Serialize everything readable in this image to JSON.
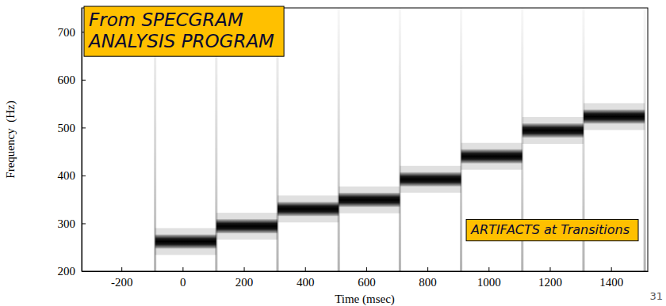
{
  "chart_data": {
    "type": "spectrogram",
    "x_label": "Time (msec)",
    "y_label": "Frequency  (Hz)",
    "bins": [
      -90,
      110,
      310,
      510,
      710,
      910,
      1110,
      1310,
      1510
    ],
    "values": [
      262,
      294,
      330,
      349,
      392,
      440,
      494,
      523
    ],
    "color": "#000000",
    "xlim": [
      -330,
      1520
    ],
    "ylim": [
      200,
      750
    ],
    "xticks": [
      -200,
      0,
      200,
      400,
      600,
      800,
      1000,
      1200,
      1400
    ],
    "yticks": [
      200,
      300,
      400,
      500,
      600,
      700
    ],
    "annotations": [
      [
        "From SPECGRAM",
        "ANALYSIS PROGRAM"
      ],
      [
        "ARTIFACTS at Transitions"
      ]
    ],
    "slide_number": "31"
  }
}
